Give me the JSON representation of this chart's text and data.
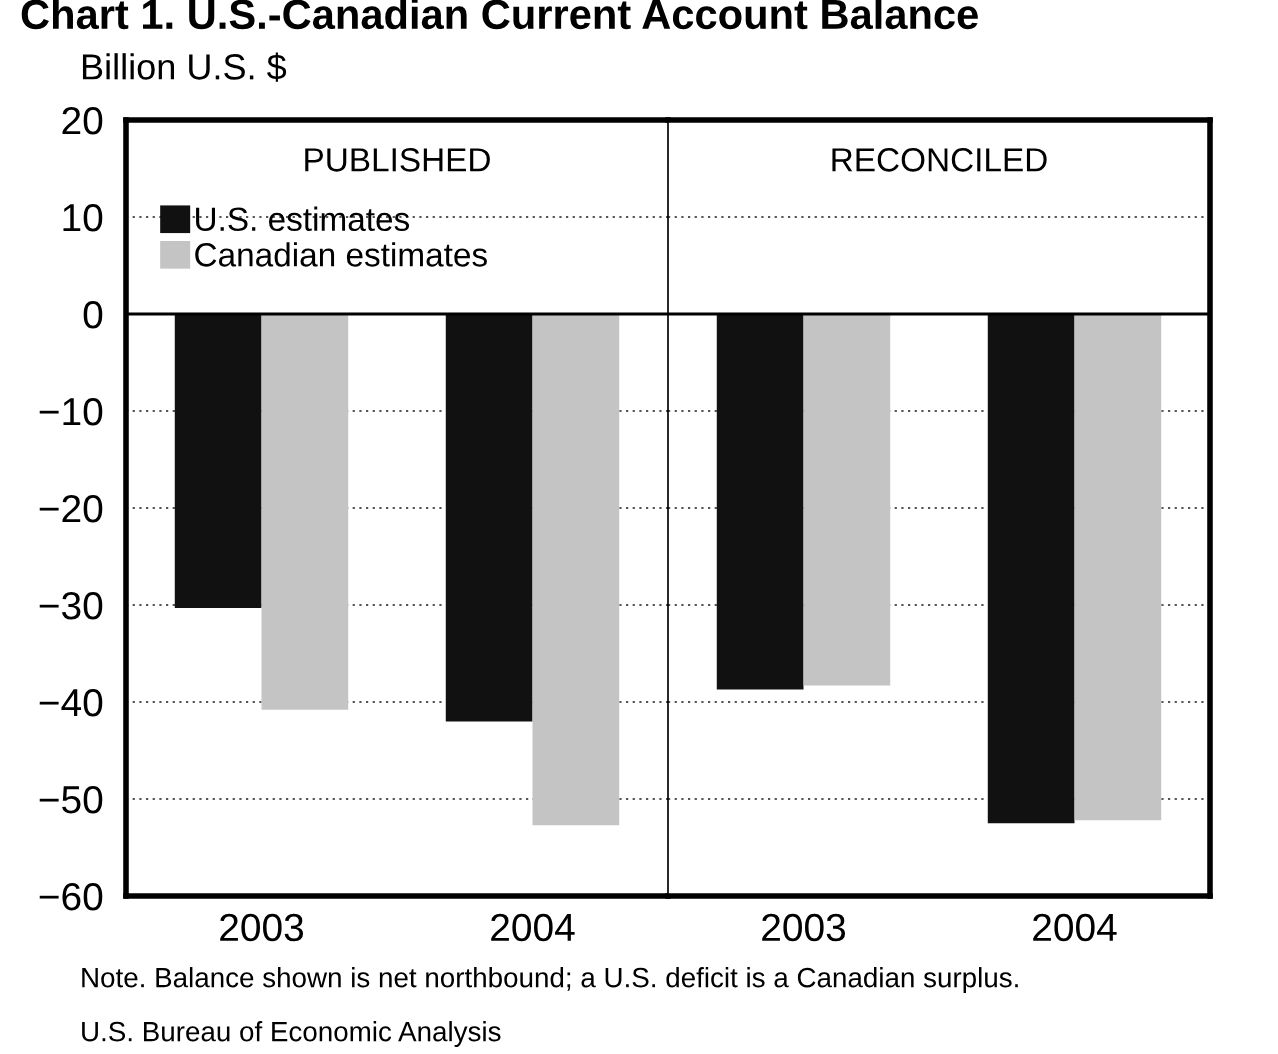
{
  "chart_data": [
    {
      "type": "bar",
      "title": "PUBLISHED",
      "ylabel": "Billion U.S. $",
      "annotations": [
        "Chart 1. U.S.-Canadian Current Account Balance",
        "Note. Balance shown is net northbound; a U.S. deficit is a Canadian surplus.",
        "U.S. Bureau of Economic Analysis"
      ],
      "categories": [
        "2003",
        "2004"
      ],
      "series": [
        {
          "name": "U.S. estimates",
          "color": "#111111",
          "values": [
            -30.3,
            -42.0
          ]
        },
        {
          "name": "Canadian estimates",
          "color": "#c4c4c4",
          "values": [
            -40.8,
            -52.7
          ]
        }
      ],
      "ylim": [
        -60,
        20
      ],
      "yticks": [
        -60,
        -50,
        -40,
        -30,
        -20,
        -10,
        0,
        10,
        20
      ],
      "grid": "y",
      "legend": "top left"
    },
    {
      "type": "bar",
      "title": "RECONCILED",
      "categories": [
        "2003",
        "2004"
      ],
      "series": [
        {
          "color": "#111111",
          "values": [
            -38.7,
            -52.5
          ]
        },
        {
          "color": "#c4c4c4",
          "values": [
            -38.3,
            -52.2
          ]
        }
      ],
      "ylim": [
        -60,
        20
      ],
      "grid": "y",
      "tick_labels": "x"
    }
  ]
}
